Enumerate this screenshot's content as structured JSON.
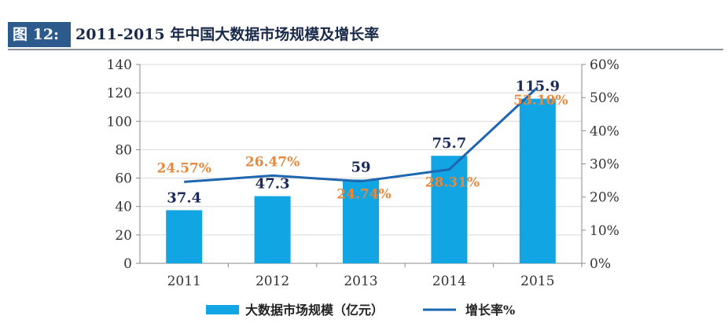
{
  "header": {
    "figure_tag": "图 12:",
    "title": "2011-2015 年中国大数据市场规模及增长率"
  },
  "chart_data": {
    "type": "bar+line",
    "title": "2011-2015 年中国大数据市场规模及增长率",
    "categories": [
      "2011",
      "2012",
      "2013",
      "2014",
      "2015"
    ],
    "series": [
      {
        "name": "大数据市场规模（亿元）",
        "type": "bar",
        "axis": "left",
        "values": [
          37.4,
          47.3,
          59,
          75.7,
          115.9
        ],
        "labels": [
          "37.4",
          "47.3",
          "59",
          "75.7",
          "115.9"
        ],
        "color": "#12a5e3"
      },
      {
        "name": "增长率%",
        "type": "line",
        "axis": "right",
        "values": [
          24.57,
          26.47,
          24.74,
          28.31,
          53.1
        ],
        "labels": [
          "24.57%",
          "26.47%",
          "24.74%",
          "28.31%",
          "53.10%"
        ],
        "color": "#1f66b0"
      }
    ],
    "left_axis": {
      "ylim": [
        0,
        140
      ],
      "ticks": [
        "0",
        "20",
        "40",
        "60",
        "80",
        "100",
        "120",
        "140"
      ]
    },
    "right_axis": {
      "ylim": [
        0,
        60
      ],
      "ticks": [
        "0%",
        "10%",
        "20%",
        "30%",
        "40%",
        "50%",
        "60%"
      ]
    },
    "grid": true,
    "legend": "bottom",
    "colors": {
      "bar_label": "#1a2a5a",
      "line_label": "#e8883a",
      "grid": "#d9d9d9"
    }
  }
}
